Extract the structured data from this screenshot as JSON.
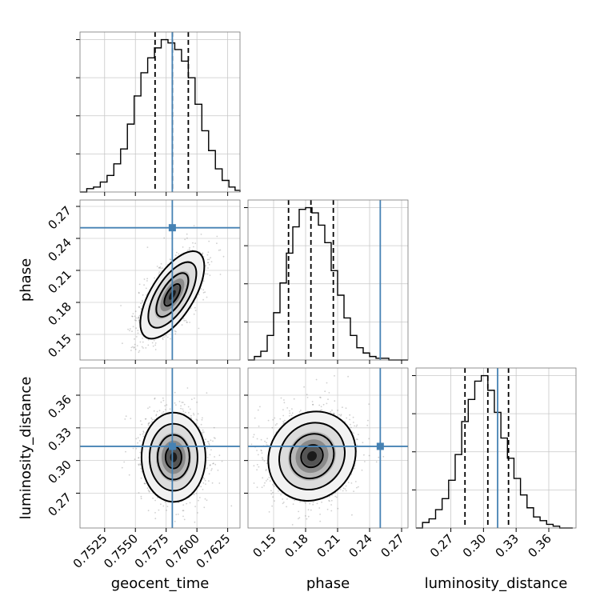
{
  "chart_data": {
    "type": "corner",
    "parameters": [
      "geocent_time",
      "phase",
      "luminosity_distance"
    ],
    "truths": {
      "geocent_time": 0.758,
      "phase": 0.25,
      "luminosity_distance": 0.313
    },
    "truth_color": "#4682b4",
    "quantile_color": "#000000",
    "grid": true,
    "axes": {
      "geocent_time": {
        "range": [
          0.7505,
          0.7635
        ],
        "ticks": [
          0.7525,
          0.755,
          0.7575,
          0.76,
          0.7625
        ],
        "tick_labels": [
          "0.7525",
          "0.7550",
          "0.7575",
          "0.7600",
          "0.7625"
        ]
      },
      "phase": {
        "range": [
          0.126,
          0.276
        ],
        "ticks": [
          0.15,
          0.18,
          0.21,
          0.24,
          0.27
        ],
        "tick_labels": [
          "0.15",
          "0.18",
          "0.21",
          "0.24",
          "0.27"
        ]
      },
      "luminosity_distance": {
        "range": [
          0.238,
          0.385
        ],
        "ticks": [
          0.27,
          0.3,
          0.33,
          0.36
        ],
        "tick_labels": [
          "0.27",
          "0.30",
          "0.33",
          "0.36"
        ]
      }
    },
    "marginals": [
      {
        "parameter": "geocent_time",
        "bin_edges": [
          0.7505,
          0.75105,
          0.7516,
          0.75215,
          0.7527,
          0.75325,
          0.7538,
          0.75435,
          0.7549,
          0.75545,
          0.756,
          0.75655,
          0.7571,
          0.75765,
          0.7582,
          0.75875,
          0.7593,
          0.75985,
          0.7604,
          0.76095,
          0.7615,
          0.76205,
          0.7626,
          0.7631,
          0.7635
        ],
        "counts": [
          0,
          2,
          3,
          6,
          10,
          17,
          26,
          41,
          58,
          72,
          81,
          87,
          92,
          90,
          86,
          79,
          69,
          53,
          37,
          25,
          14,
          7,
          3,
          1
        ],
        "quantiles": [
          0.7566,
          0.758,
          0.7593
        ]
      },
      {
        "parameter": "phase",
        "bin_edges": [
          0.126,
          0.132,
          0.138,
          0.144,
          0.15,
          0.156,
          0.162,
          0.168,
          0.174,
          0.18,
          0.186,
          0.192,
          0.198,
          0.204,
          0.21,
          0.216,
          0.222,
          0.228,
          0.234,
          0.24,
          0.246,
          0.252,
          0.258,
          0.264,
          0.27,
          0.276
        ],
        "counts": [
          0,
          2,
          5,
          14,
          27,
          44,
          61,
          76,
          86,
          87,
          84,
          77,
          67,
          51,
          37,
          24,
          14,
          7,
          4,
          2,
          1,
          1,
          0,
          0,
          0
        ],
        "quantiles": [
          0.164,
          0.185,
          0.206
        ]
      },
      {
        "parameter": "luminosity_distance",
        "bin_edges": [
          0.238,
          0.244,
          0.25,
          0.256,
          0.262,
          0.268,
          0.274,
          0.28,
          0.286,
          0.292,
          0.298,
          0.304,
          0.31,
          0.316,
          0.322,
          0.328,
          0.334,
          0.34,
          0.346,
          0.352,
          0.358,
          0.364,
          0.37,
          0.376,
          0.382
        ],
        "counts": [
          0,
          3,
          5,
          10,
          16,
          26,
          40,
          58,
          70,
          80,
          83,
          75,
          63,
          49,
          38,
          27,
          18,
          11,
          6,
          4,
          2,
          1,
          0,
          0
        ],
        "quantiles": [
          0.283,
          0.304,
          0.323
        ]
      }
    ],
    "joint_distributions": [
      {
        "x": "geocent_time",
        "y": "phase",
        "mean": [
          0.758,
          0.187
        ],
        "sd": [
          0.0013,
          0.0205
        ],
        "correlation": 0.65
      },
      {
        "x": "geocent_time",
        "y": "luminosity_distance",
        "mean": [
          0.7581,
          0.303
        ],
        "sd": [
          0.0013,
          0.0205
        ],
        "correlation": 0.0
      },
      {
        "x": "phase",
        "y": "luminosity_distance",
        "mean": [
          0.186,
          0.304
        ],
        "sd": [
          0.0205,
          0.0205
        ],
        "correlation": 0.1
      }
    ],
    "contour_levels_sigma": [
      0.5,
      1.0,
      1.5,
      2.0
    ]
  }
}
